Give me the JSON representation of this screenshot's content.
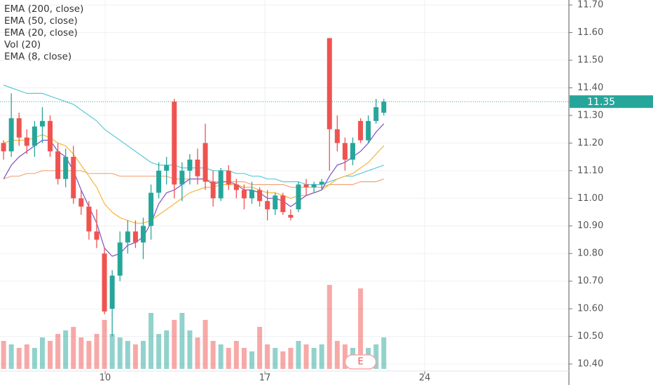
{
  "chart_data": {
    "type": "candlestick",
    "x": [
      5.55,
      5.89,
      6.23,
      6.57,
      6.91,
      7.25,
      7.59,
      7.93,
      8.27,
      8.61,
      8.95,
      9.29,
      9.63,
      9.97,
      10.31,
      10.65,
      10.99,
      11.33,
      11.67,
      12.01,
      12.35,
      12.69,
      13.03,
      13.37,
      13.71,
      14.05,
      14.39,
      14.73,
      15.07,
      15.41,
      15.75,
      16.09,
      16.43,
      16.77,
      17.11,
      17.45,
      17.79,
      18.13,
      18.47,
      18.81,
      19.15,
      19.49,
      19.83,
      20.17,
      20.51,
      20.85,
      21.19,
      21.53,
      21.87,
      22.21
    ],
    "open": [
      11.2,
      11.17,
      11.29,
      11.22,
      11.19,
      11.26,
      11.28,
      11.17,
      11.07,
      11.15,
      11.0,
      10.97,
      10.88,
      10.8,
      10.6,
      10.72,
      10.84,
      10.88,
      10.84,
      10.9,
      11.02,
      11.1,
      11.35,
      11.05,
      11.1,
      11.14,
      11.2,
      11.06,
      11.0,
      11.1,
      11.05,
      11.03,
      11.0,
      11.03,
      10.99,
      10.96,
      11.01,
      10.94,
      10.96,
      11.05,
      11.04,
      11.05,
      11.58,
      11.25,
      11.2,
      11.14,
      11.28,
      11.21,
      11.28,
      11.31
    ],
    "high": [
      11.21,
      11.38,
      11.31,
      11.25,
      11.28,
      11.33,
      11.3,
      11.2,
      11.18,
      11.19,
      11.03,
      10.99,
      10.96,
      10.82,
      10.74,
      10.88,
      10.92,
      10.92,
      10.93,
      11.05,
      11.13,
      11.15,
      11.36,
      11.13,
      11.16,
      11.18,
      11.27,
      11.1,
      11.11,
      11.12,
      11.07,
      11.05,
      11.06,
      11.04,
      11.03,
      11.02,
      11.02,
      10.96,
      11.06,
      11.07,
      11.06,
      11.07,
      11.58,
      11.3,
      11.22,
      11.22,
      11.29,
      11.3,
      11.36,
      11.36
    ],
    "low": [
      11.14,
      11.15,
      11.19,
      11.16,
      11.15,
      11.2,
      11.15,
      11.05,
      11.04,
      10.98,
      10.94,
      10.85,
      10.82,
      10.58,
      10.5,
      10.7,
      10.8,
      10.82,
      10.78,
      10.85,
      11.0,
      11.05,
      11.0,
      10.99,
      11.05,
      11.05,
      11.03,
      10.97,
      10.99,
      11.03,
      11.0,
      10.96,
      10.98,
      10.97,
      10.92,
      10.94,
      10.94,
      10.92,
      10.95,
      11.01,
      11.02,
      11.03,
      11.1,
      11.17,
      11.1,
      11.12,
      11.2,
      11.2,
      11.27,
      11.3
    ],
    "close": [
      11.17,
      11.29,
      11.22,
      11.19,
      11.26,
      11.28,
      11.17,
      11.07,
      11.15,
      11.0,
      10.97,
      10.88,
      10.85,
      10.59,
      10.72,
      10.84,
      10.88,
      10.84,
      10.9,
      11.02,
      11.1,
      11.12,
      11.05,
      11.1,
      11.14,
      11.08,
      11.06,
      11.0,
      11.1,
      11.05,
      11.03,
      11.0,
      11.03,
      10.99,
      10.96,
      11.01,
      10.95,
      10.93,
      11.05,
      11.04,
      11.05,
      11.06,
      11.25,
      11.2,
      11.14,
      11.2,
      11.21,
      11.28,
      11.33,
      11.35
    ],
    "up_color": "#26a69a",
    "down_color": "#ef5350",
    "volume": {
      "name": "Vol (20)",
      "values": [
        40,
        35,
        30,
        35,
        30,
        45,
        40,
        50,
        55,
        60,
        45,
        40,
        50,
        70,
        50,
        45,
        40,
        35,
        40,
        80,
        50,
        55,
        70,
        80,
        55,
        45,
        70,
        40,
        35,
        30,
        40,
        30,
        25,
        60,
        35,
        30,
        25,
        30,
        40,
        35,
        30,
        35,
        120,
        40,
        35,
        30,
        115,
        30,
        35,
        45
      ]
    },
    "series": [
      {
        "name": "EMA (200, close)",
        "color": "#f4a57a",
        "values": [
          11.07,
          11.08,
          11.08,
          11.09,
          11.09,
          11.1,
          11.1,
          11.1,
          11.1,
          11.1,
          11.1,
          11.09,
          11.09,
          11.09,
          11.09,
          11.08,
          11.08,
          11.08,
          11.08,
          11.08,
          11.08,
          11.08,
          11.07,
          11.07,
          11.07,
          11.07,
          11.07,
          11.06,
          11.06,
          11.06,
          11.06,
          11.06,
          11.05,
          11.05,
          11.05,
          11.05,
          11.05,
          11.04,
          11.04,
          11.04,
          11.04,
          11.04,
          11.05,
          11.05,
          11.05,
          11.05,
          11.06,
          11.06,
          11.06,
          11.07
        ]
      },
      {
        "name": "EMA (50, close)",
        "color": "#5cc9d6",
        "values": [
          11.41,
          11.4,
          11.39,
          11.38,
          11.38,
          11.38,
          11.37,
          11.36,
          11.35,
          11.34,
          11.32,
          11.3,
          11.28,
          11.25,
          11.23,
          11.21,
          11.19,
          11.17,
          11.15,
          11.13,
          11.12,
          11.12,
          11.12,
          11.11,
          11.11,
          11.11,
          11.11,
          11.1,
          11.1,
          11.1,
          11.09,
          11.09,
          11.08,
          11.08,
          11.07,
          11.07,
          11.06,
          11.06,
          11.06,
          11.05,
          11.05,
          11.05,
          11.06,
          11.07,
          11.08,
          11.08,
          11.09,
          11.1,
          11.11,
          11.12
        ]
      },
      {
        "name": "EMA (20, close)",
        "color": "#f5b73b",
        "values": [
          11.2,
          11.21,
          11.21,
          11.21,
          11.22,
          11.23,
          11.22,
          11.2,
          11.19,
          11.16,
          11.12,
          11.08,
          11.04,
          10.98,
          10.95,
          10.93,
          10.92,
          10.91,
          10.91,
          10.92,
          10.94,
          10.96,
          10.98,
          11.0,
          11.02,
          11.03,
          11.04,
          11.04,
          11.05,
          11.05,
          11.05,
          11.04,
          11.04,
          11.03,
          11.02,
          11.02,
          11.01,
          11.0,
          11.01,
          11.01,
          11.02,
          11.03,
          11.05,
          11.07,
          11.08,
          11.09,
          11.11,
          11.13,
          11.16,
          11.19
        ]
      },
      {
        "name": "EMA (8, close)",
        "color": "#7e4fc1",
        "values": [
          11.07,
          11.12,
          11.15,
          11.17,
          11.19,
          11.21,
          11.21,
          11.17,
          11.15,
          11.1,
          11.03,
          10.97,
          10.91,
          10.82,
          10.79,
          10.8,
          10.83,
          10.84,
          10.86,
          10.91,
          10.98,
          11.02,
          11.03,
          11.05,
          11.07,
          11.07,
          11.07,
          11.05,
          11.06,
          11.06,
          11.05,
          11.03,
          11.03,
          11.02,
          11.0,
          11.0,
          10.99,
          10.97,
          10.99,
          11.01,
          11.02,
          11.03,
          11.08,
          11.12,
          11.13,
          11.15,
          11.17,
          11.2,
          11.24,
          11.27
        ]
      }
    ],
    "last_price": 11.35,
    "annotation": {
      "text": "E",
      "x": 21.19
    },
    "xlim": [
      5.394,
      30.32
    ],
    "xticks": [
      10,
      17,
      24
    ],
    "ylim": [
      10.324,
      11.718
    ],
    "yticks": [
      {
        "value": 10.4,
        "label": "10.40"
      },
      {
        "value": 10.5,
        "label": "10.50"
      },
      {
        "value": 10.6,
        "label": "10.60"
      },
      {
        "value": 10.7,
        "label": "10.70"
      },
      {
        "value": 10.8,
        "label": "10.80"
      },
      {
        "value": 10.9,
        "label": "10.90"
      },
      {
        "value": 11.0,
        "label": "11.00"
      },
      {
        "value": 11.1,
        "label": "11.10"
      },
      {
        "value": 11.2,
        "label": "11.20"
      },
      {
        "value": 11.3,
        "label": "11.30"
      },
      {
        "value": 11.4,
        "label": "11.40"
      },
      {
        "value": 11.5,
        "label": "11.50"
      },
      {
        "value": 11.6,
        "label": "11.60"
      },
      {
        "value": 11.7,
        "label": "11.70"
      }
    ],
    "grid": true
  }
}
